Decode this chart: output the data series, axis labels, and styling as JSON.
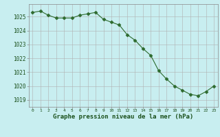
{
  "x": [
    0,
    1,
    2,
    3,
    4,
    5,
    6,
    7,
    8,
    9,
    10,
    11,
    12,
    13,
    14,
    15,
    16,
    17,
    18,
    19,
    20,
    21,
    22,
    23
  ],
  "y": [
    1025.3,
    1025.4,
    1025.1,
    1024.9,
    1024.9,
    1024.9,
    1025.1,
    1025.2,
    1025.3,
    1024.8,
    1024.6,
    1024.4,
    1023.7,
    1023.3,
    1022.7,
    1022.2,
    1021.1,
    1020.5,
    1020.0,
    1019.7,
    1019.4,
    1019.3,
    1019.6,
    1020.0
  ],
  "line_color": "#2d6a2d",
  "marker": "D",
  "marker_size": 2.5,
  "background_color": "#c8eef0",
  "grid_color": "#b0b0b0",
  "grid_color_minor": "#d8d8d8",
  "xlabel": "Graphe pression niveau de la mer (hPa)",
  "xlabel_color": "#1a4f1a",
  "tick_color": "#1a4f1a",
  "ylabel_ticks": [
    1019,
    1020,
    1021,
    1022,
    1023,
    1024,
    1025
  ],
  "xlim": [
    -0.5,
    23.5
  ],
  "ylim": [
    1018.5,
    1025.9
  ],
  "xticks": [
    0,
    1,
    2,
    3,
    4,
    5,
    6,
    7,
    8,
    9,
    10,
    11,
    12,
    13,
    14,
    15,
    16,
    17,
    18,
    19,
    20,
    21,
    22,
    23
  ]
}
